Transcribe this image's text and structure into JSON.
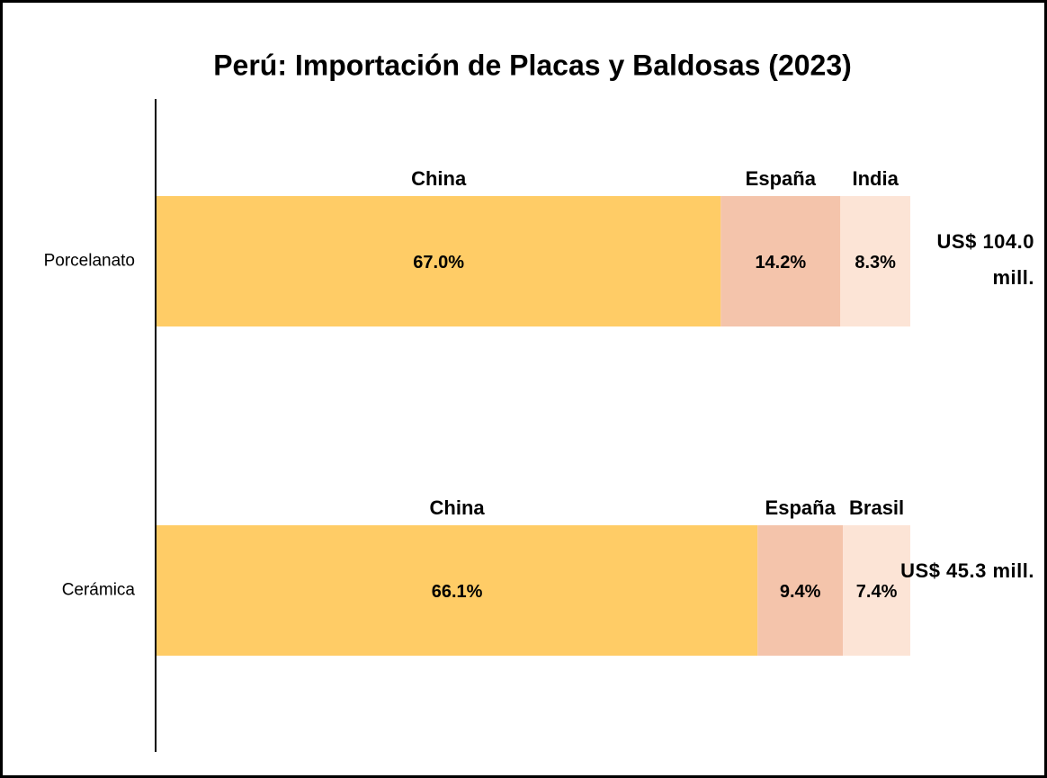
{
  "chart_data": {
    "type": "stacked100",
    "title": "Perú: Importación de Placas y Baldosas (2023)",
    "categories": [
      "Porcelanato",
      "Cerámica"
    ],
    "segment_labels": [
      [
        "China",
        "España",
        "India"
      ],
      [
        "China",
        "España",
        "Brasil"
      ]
    ],
    "series": [
      {
        "color": "#ffcc66",
        "values": [
          67.0,
          66.1
        ],
        "value_labels": [
          "67.0%",
          "66.1%"
        ]
      },
      {
        "color": "#f4c4ab",
        "values": [
          14.2,
          9.4
        ],
        "value_labels": [
          "14.2%",
          "9.4%"
        ]
      },
      {
        "color": "#fce4d6",
        "values": [
          8.3,
          7.4
        ],
        "value_labels": [
          "8.3%",
          "7.4%"
        ]
      }
    ],
    "totals": {
      "values": [
        104.0,
        45.3
      ],
      "value_labels": [
        "US$ 104.0 mill.",
        "US$ 45.3 mill."
      ]
    }
  }
}
